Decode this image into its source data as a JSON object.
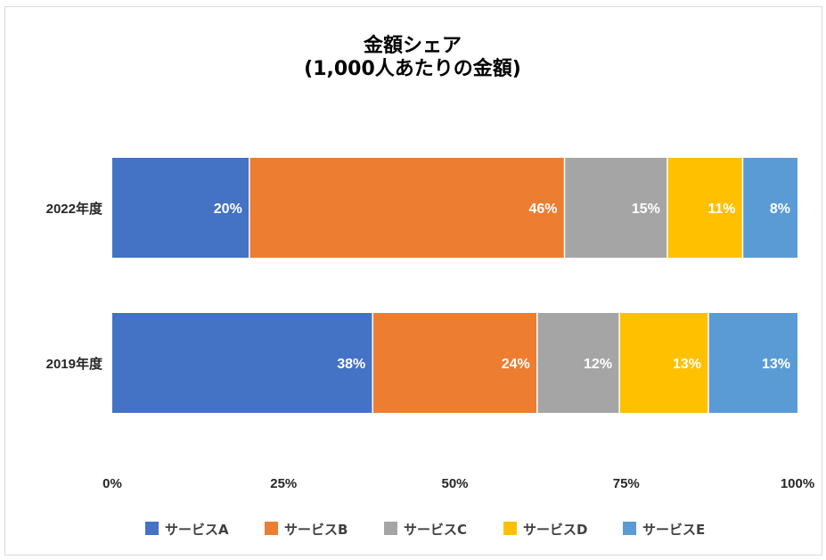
{
  "chart_data": {
    "type": "bar",
    "orientation": "horizontal",
    "stacked": true,
    "title": "金額シェア",
    "subtitle": "(1,000人あたりの金額)",
    "categories": [
      "2022年度",
      "2019年度"
    ],
    "series": [
      {
        "name": "サービスA",
        "color": "#4472C4",
        "values": [
          20,
          38
        ],
        "labels": [
          "20%",
          "38%"
        ]
      },
      {
        "name": "サービスB",
        "color": "#ED7D31",
        "values": [
          46,
          24
        ],
        "labels": [
          "46%",
          "24%"
        ]
      },
      {
        "name": "サービスC",
        "color": "#A5A5A5",
        "values": [
          15,
          12
        ],
        "labels": [
          "15%",
          "12%"
        ]
      },
      {
        "name": "サービスD",
        "color": "#FFC000",
        "values": [
          11,
          13
        ],
        "labels": [
          "11%",
          "13%"
        ]
      },
      {
        "name": "サービスE",
        "color": "#5B9BD5",
        "values": [
          8,
          13
        ],
        "labels": [
          "8%",
          "13%"
        ]
      }
    ],
    "xlim": [
      0,
      100
    ],
    "xticks": [
      0,
      25,
      50,
      75,
      100
    ],
    "xtick_labels": [
      "0%",
      "25%",
      "50%",
      "75%",
      "100%"
    ],
    "grid": false,
    "legend_position": "bottom"
  }
}
